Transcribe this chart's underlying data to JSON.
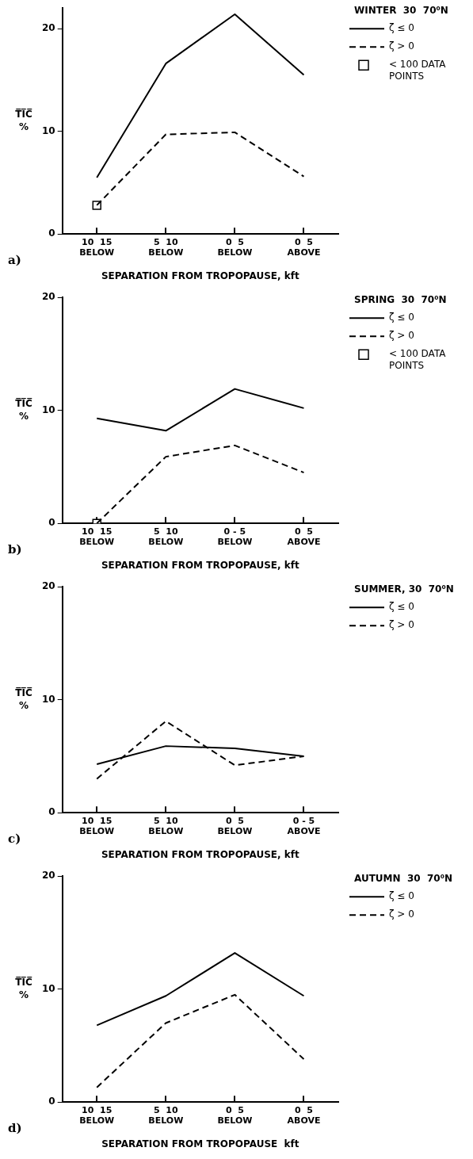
{
  "chart_data": [
    {
      "type": "line",
      "legend_title": "WINTER  30  70⁰N",
      "xlabel": "SEPARATION FROM TROPOPAUSE, kft",
      "ylabel": "T̅I̅C̅\n%",
      "categories": [
        "10  15\nBELOW",
        "5  10\nBELOW",
        "0  5\nBELOW",
        "0  5\nABOVE"
      ],
      "ylim": [
        0,
        22
      ],
      "yticks": [
        0,
        10,
        20
      ],
      "legend": "top right",
      "annotations": [
        "a)"
      ],
      "series": [
        {
          "name": "ζ ≤ 0",
          "color": "#000000",
          "line_style": "solid",
          "marker": "none",
          "values": [
            5.5,
            16.6,
            21.4,
            15.5
          ]
        },
        {
          "name": "ζ > 0",
          "color": "#000000",
          "line_style": "dashed",
          "marker": "none",
          "values": [
            2.8,
            9.7,
            9.9,
            5.6
          ]
        },
        {
          "name": "< 100 DATA POINTS",
          "type": "scatter",
          "color": "#000000",
          "marker": "square",
          "x": [
            "10  15\nBELOW"
          ],
          "values": [
            2.8
          ]
        }
      ]
    },
    {
      "type": "line",
      "legend_title": "SPRING  30  70⁰N",
      "xlabel": "SEPARATION FROM TROPOPAUSE, kft",
      "ylabel": "T̅I̅C̅\n%",
      "categories": [
        "10  15\nBELOW",
        "5  10\nBELOW",
        "0 - 5\nBELOW",
        "0  5\nABOVE"
      ],
      "ylim": [
        0,
        20
      ],
      "yticks": [
        0,
        10,
        20
      ],
      "legend": "top right",
      "annotations": [
        "b)"
      ],
      "series": [
        {
          "name": "ζ ≤ 0",
          "color": "#000000",
          "line_style": "solid",
          "marker": "none",
          "values": [
            9.3,
            8.2,
            11.9,
            10.2
          ]
        },
        {
          "name": "ζ > 0",
          "color": "#000000",
          "line_style": "dashed",
          "marker": "none",
          "values": [
            0,
            5.9,
            6.9,
            4.5
          ]
        },
        {
          "name": "< 100 DATA POINTS",
          "type": "scatter",
          "color": "#000000",
          "marker": "square",
          "x": [
            "10  15\nBELOW"
          ],
          "values": [
            0
          ]
        }
      ]
    },
    {
      "type": "line",
      "legend_title": "SUMMER, 30  70⁰N",
      "xlabel": "SEPARATION FROM TROPOPAUSE, kft",
      "ylabel": "T̅I̅C̅\n%",
      "categories": [
        "10  15\nBELOW",
        "5  10\nBELOW",
        "0  5\nBELOW",
        "0 - 5\nABOVE"
      ],
      "ylim": [
        0,
        20
      ],
      "yticks": [
        0,
        10,
        20
      ],
      "legend": "top right",
      "annotations": [
        "c)"
      ],
      "series": [
        {
          "name": "ζ ≤ 0",
          "color": "#000000",
          "line_style": "solid",
          "marker": "none",
          "values": [
            4.3,
            5.9,
            5.7,
            5.0
          ]
        },
        {
          "name": "ζ > 0",
          "color": "#000000",
          "line_style": "dashed",
          "marker": "none",
          "values": [
            3.0,
            8.1,
            4.2,
            5.0
          ]
        }
      ]
    },
    {
      "type": "line",
      "legend_title": "AUTUMN  30  70⁰N",
      "xlabel": "SEPARATION FROM TROPOPAUSE  kft",
      "ylabel": "T̅I̅C̅\n%",
      "categories": [
        "10  15\nBELOW",
        "5  10\nBELOW",
        "0  5\nBELOW",
        "0  5\nABOVE"
      ],
      "ylim": [
        0,
        20
      ],
      "yticks": [
        0,
        10,
        20
      ],
      "legend": "top right",
      "annotations": [
        "d)"
      ],
      "series": [
        {
          "name": "ζ ≤ 0",
          "color": "#000000",
          "line_style": "solid",
          "marker": "none",
          "values": [
            6.8,
            9.4,
            13.2,
            9.4
          ]
        },
        {
          "name": "ζ > 0",
          "color": "#000000",
          "line_style": "dashed",
          "marker": "none",
          "values": [
            1.3,
            7.0,
            9.5,
            3.8
          ]
        }
      ]
    }
  ]
}
